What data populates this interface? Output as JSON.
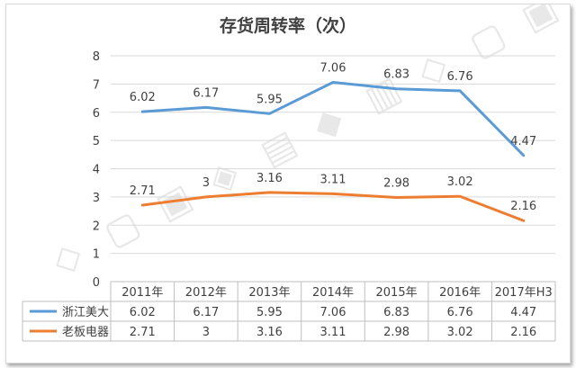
{
  "chart_data": {
    "type": "line",
    "title": "存货周转率（次）",
    "categories": [
      "2011年",
      "2012年",
      "2013年",
      "2014年",
      "2015年",
      "2016年",
      "2017年H3"
    ],
    "series": [
      {
        "name": "浙江美大",
        "color": "#5b9bd5",
        "values": [
          6.02,
          6.17,
          5.95,
          7.06,
          6.83,
          6.76,
          4.47
        ],
        "labels": [
          "6.02",
          "6.17",
          "5.95",
          "7.06",
          "6.83",
          "6.76",
          "4.47"
        ]
      },
      {
        "name": "老板电器",
        "color": "#ed7d31",
        "values": [
          2.71,
          3,
          3.16,
          3.11,
          2.98,
          3.02,
          2.16
        ],
        "labels": [
          "2.71",
          "3",
          "3.16",
          "3.11",
          "2.98",
          "3.02",
          "2.16"
        ]
      }
    ],
    "ylim": [
      0,
      8
    ],
    "yticks": [
      "0",
      "1",
      "2",
      "3",
      "4",
      "5",
      "6",
      "7",
      "8"
    ],
    "grid": true,
    "legend": "data-table"
  }
}
